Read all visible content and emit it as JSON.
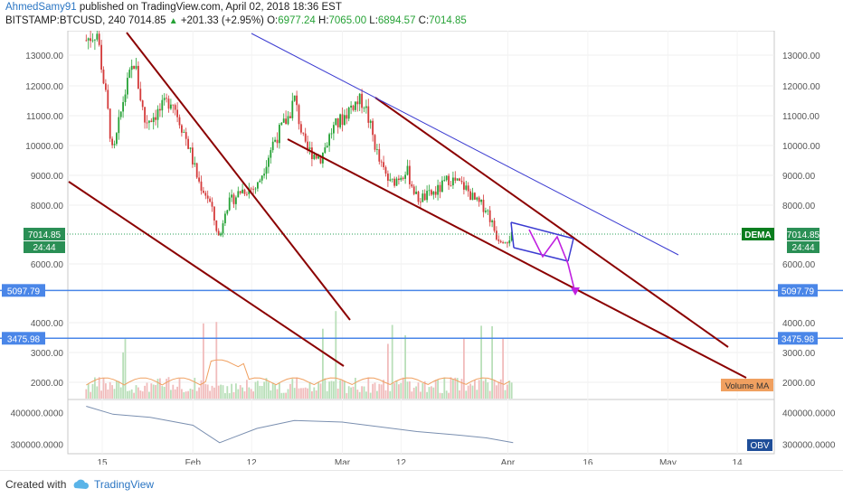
{
  "header": {
    "author": "AhmedSamy91",
    "published_text": " published on TradingView.com, April 02, 2018 18:36 EST",
    "symbol": "BITSTAMP:BTCUSD, 240",
    "last": "7014.85",
    "change_arrow": "▲",
    "change": "+201.33 (+2.95%)",
    "o_label": "O:",
    "o_value": "6977.24",
    "h_label": "H:",
    "h_value": "7065.00",
    "l_label": "L:",
    "l_value": "6894.57",
    "c_label": "C:",
    "c_value": "7014.85"
  },
  "footer": {
    "created_with": "Created with",
    "brand": "TradingView"
  },
  "colors": {
    "up": "#26a236",
    "down": "#d43a3a",
    "trend": "#8b0000",
    "level": "#4a86e8",
    "channel": "#3b3bd1",
    "arrow": "#c020e0",
    "dema": "#0a7d1e",
    "volume_ma": "#f0a060"
  },
  "chart_data": {
    "type": "candlestick",
    "x_ticks": [
      "15",
      "Feb",
      "12",
      "Mar",
      "12",
      "Apr",
      "16",
      "May",
      "14"
    ],
    "y_ticks": [
      "13000.00",
      "12000.00",
      "11000.00",
      "10000.00",
      "9000.00",
      "8000.00",
      "6000.00",
      "4000.00",
      "3000.00",
      "2000.00"
    ],
    "ylim": [
      1500,
      13600
    ],
    "price_path": [
      {
        "date": "2018-01-12",
        "close": 13500
      },
      {
        "date": "2018-01-14",
        "close": 13800
      },
      {
        "date": "2018-01-16",
        "close": 11200
      },
      {
        "date": "2018-01-17",
        "close": 9600
      },
      {
        "date": "2018-01-19",
        "close": 11600
      },
      {
        "date": "2018-01-21",
        "close": 12800
      },
      {
        "date": "2018-01-23",
        "close": 10800
      },
      {
        "date": "2018-01-26",
        "close": 11200
      },
      {
        "date": "2018-01-28",
        "close": 11600
      },
      {
        "date": "2018-01-31",
        "close": 10100
      },
      {
        "date": "2018-02-02",
        "close": 8800
      },
      {
        "date": "2018-02-04",
        "close": 8200
      },
      {
        "date": "2018-02-06",
        "close": 6800
      },
      {
        "date": "2018-02-07",
        "close": 7900
      },
      {
        "date": "2018-02-10",
        "close": 8500
      },
      {
        "date": "2018-02-13",
        "close": 8600
      },
      {
        "date": "2018-02-16",
        "close": 10100
      },
      {
        "date": "2018-02-19",
        "close": 11000
      },
      {
        "date": "2018-02-20",
        "close": 11600
      },
      {
        "date": "2018-02-22",
        "close": 9900
      },
      {
        "date": "2018-02-25",
        "close": 9600
      },
      {
        "date": "2018-02-27",
        "close": 10500
      },
      {
        "date": "2018-03-01",
        "close": 10900
      },
      {
        "date": "2018-03-03",
        "close": 11400
      },
      {
        "date": "2018-03-05",
        "close": 11500
      },
      {
        "date": "2018-03-08",
        "close": 9400
      },
      {
        "date": "2018-03-10",
        "close": 8700
      },
      {
        "date": "2018-03-13",
        "close": 9200
      },
      {
        "date": "2018-03-15",
        "close": 8200
      },
      {
        "date": "2018-03-17",
        "close": 8300
      },
      {
        "date": "2018-03-19",
        "close": 8500
      },
      {
        "date": "2018-03-21",
        "close": 8900
      },
      {
        "date": "2018-03-24",
        "close": 8600
      },
      {
        "date": "2018-03-26",
        "close": 8100
      },
      {
        "date": "2018-03-28",
        "close": 7900
      },
      {
        "date": "2018-03-30",
        "close": 6900
      },
      {
        "date": "2018-04-01",
        "close": 6850
      },
      {
        "date": "2018-04-02",
        "close": 7015
      }
    ],
    "last_price": {
      "value": "7014.85",
      "time": "24:44"
    },
    "levels": [
      {
        "value": 5097.79,
        "label": "5097.79"
      },
      {
        "value": 3475.98,
        "label": "3475.98"
      }
    ],
    "indicators": {
      "dema_label": "DEMA",
      "volume_ma_label": "Volume MA",
      "obv_label": "OBV"
    },
    "obv": {
      "y_ticks": [
        "400000.0000",
        "300000.0000"
      ],
      "ylim": [
        270000,
        430000
      ],
      "series": [
        {
          "date": "2018-01-12",
          "value": 420000
        },
        {
          "date": "2018-01-17",
          "value": 395000
        },
        {
          "date": "2018-01-24",
          "value": 385000
        },
        {
          "date": "2018-02-01",
          "value": 360000
        },
        {
          "date": "2018-02-06",
          "value": 305000
        },
        {
          "date": "2018-02-13",
          "value": 350000
        },
        {
          "date": "2018-02-20",
          "value": 375000
        },
        {
          "date": "2018-03-01",
          "value": 370000
        },
        {
          "date": "2018-03-08",
          "value": 355000
        },
        {
          "date": "2018-03-15",
          "value": 340000
        },
        {
          "date": "2018-03-22",
          "value": 330000
        },
        {
          "date": "2018-03-28",
          "value": 320000
        },
        {
          "date": "2018-04-02",
          "value": 305000
        }
      ]
    }
  }
}
